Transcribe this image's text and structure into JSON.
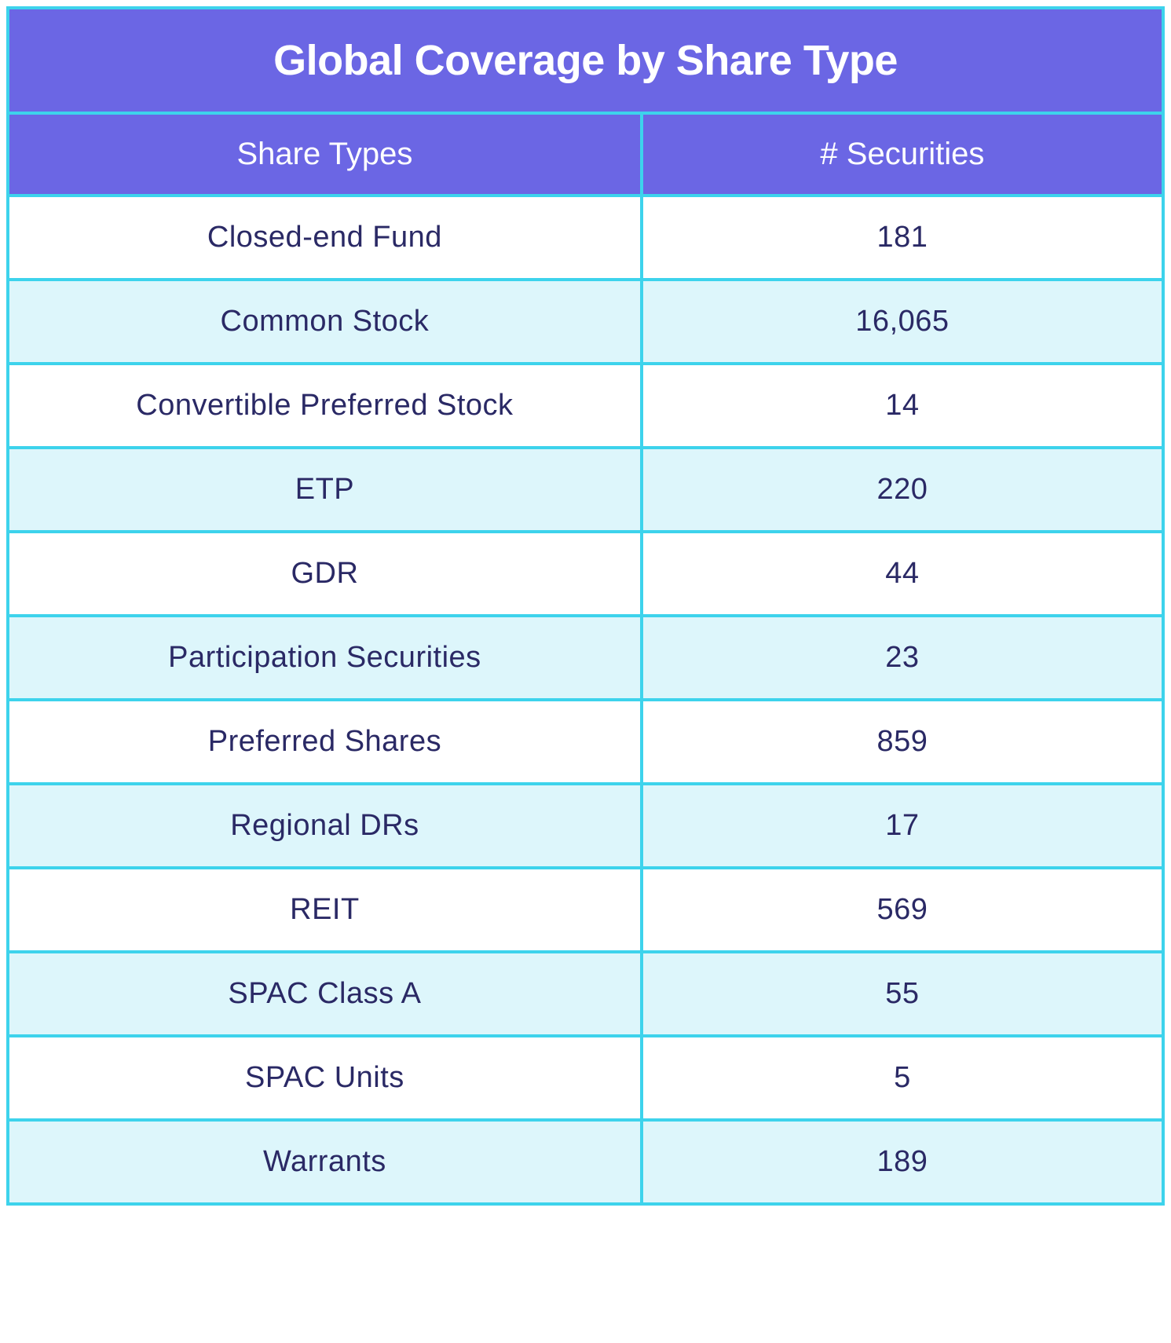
{
  "table": {
    "title": "Global Coverage by Share Type",
    "columns": [
      "Share Types",
      "# Securities"
    ],
    "rows": [
      {
        "label": "Closed-end Fund",
        "value": "181"
      },
      {
        "label": "Common Stock",
        "value": "16,065"
      },
      {
        "label": "Convertible Preferred Stock",
        "value": "14"
      },
      {
        "label": "ETP",
        "value": "220"
      },
      {
        "label": "GDR",
        "value": "44"
      },
      {
        "label": "Participation Securities",
        "value": "23"
      },
      {
        "label": "Preferred Shares",
        "value": "859"
      },
      {
        "label": "Regional DRs",
        "value": "17"
      },
      {
        "label": "REIT",
        "value": "569"
      },
      {
        "label": "SPAC Class A",
        "value": "55"
      },
      {
        "label": "SPAC Units",
        "value": "5"
      },
      {
        "label": "Warrants",
        "value": "189"
      }
    ],
    "colors": {
      "header_bg": "#6b66e4",
      "border": "#3dd3ec",
      "row_alt_bg": "#ddf6fb",
      "row_bg": "#ffffff",
      "header_text": "#ffffff",
      "data_text": "#2a2965"
    },
    "fontsize": {
      "title": 54,
      "header": 40,
      "data": 38
    },
    "column_widths_pct": [
      55,
      45
    ]
  }
}
